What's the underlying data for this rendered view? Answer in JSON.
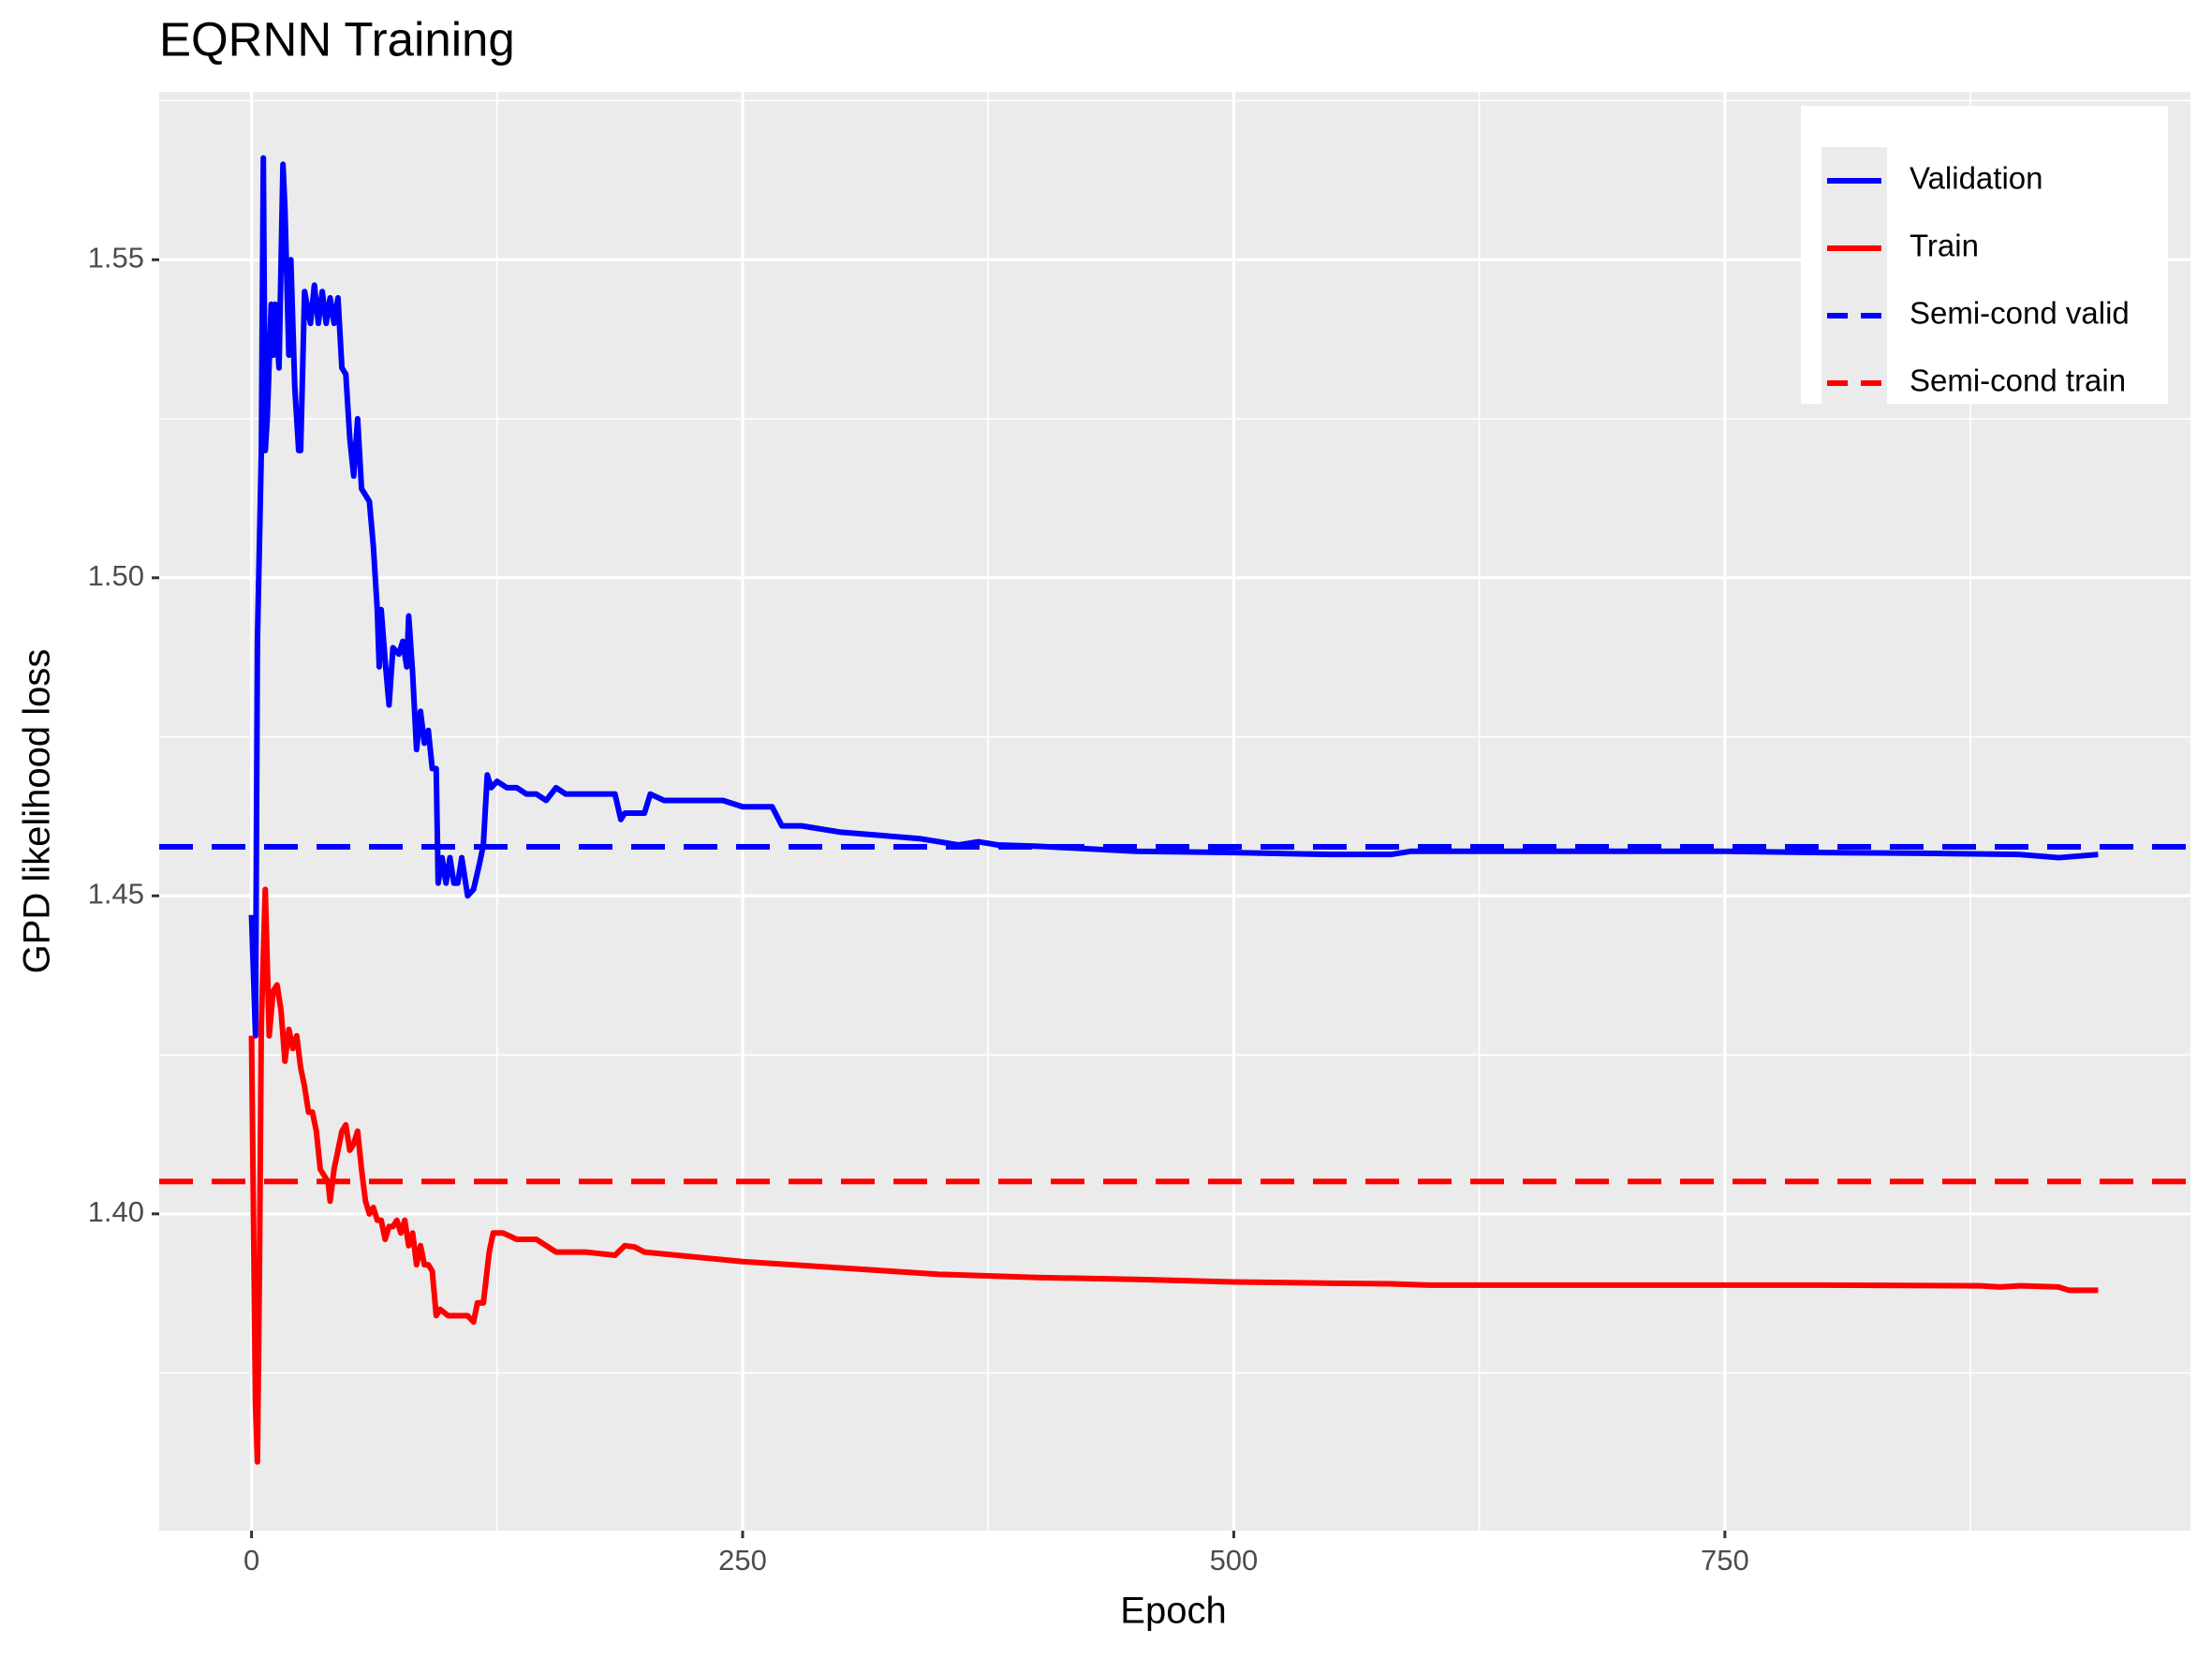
{
  "chart_data": {
    "type": "line",
    "title": "EQRNN Training",
    "x_label": "Epoch",
    "y_label": "GPD likelihood loss",
    "xlim": [
      -47,
      987
    ],
    "ylim": [
      1.3502,
      1.5764
    ],
    "xticks": [
      0,
      250,
      500,
      750
    ],
    "yticks": [
      {
        "value": 1.4,
        "label": "1.40"
      },
      1.45,
      {
        "value": 1.5,
        "label": "1.50"
      },
      1.55
    ],
    "minor_xticks": [
      125,
      375,
      625,
      875
    ],
    "minor_yticks": [
      1.375,
      1.425,
      1.475,
      1.525,
      1.575
    ],
    "grid": true,
    "legend_position": "top-right",
    "series": [
      {
        "name": "Validation",
        "color": "#0000ff",
        "linetype": "solid",
        "x": [
          0,
          2,
          3,
          5,
          6,
          7,
          8,
          10,
          11,
          12,
          14,
          16,
          17,
          19,
          20,
          22,
          24,
          25,
          27,
          30,
          32,
          34,
          36,
          38,
          40,
          42,
          44,
          46,
          48,
          50,
          52,
          54,
          56,
          58,
          60,
          62,
          64,
          65,
          66,
          68,
          70,
          72,
          75,
          77,
          79,
          80,
          82,
          84,
          86,
          88,
          90,
          92,
          94,
          95,
          97,
          99,
          101,
          103,
          105,
          107,
          110,
          113,
          116,
          118,
          120,
          122,
          125,
          130,
          135,
          140,
          145,
          150,
          155,
          160,
          170,
          180,
          185,
          188,
          190,
          200,
          203,
          210,
          220,
          230,
          240,
          250,
          260,
          265,
          270,
          280,
          300,
          320,
          340,
          360,
          370,
          380,
          400,
          450,
          500,
          550,
          580,
          590,
          650,
          700,
          750,
          800,
          850,
          900,
          920,
          940
        ],
        "values": [
          1.447,
          1.428,
          1.49,
          1.52,
          1.566,
          1.52,
          1.525,
          1.543,
          1.535,
          1.543,
          1.533,
          1.565,
          1.558,
          1.535,
          1.55,
          1.53,
          1.52,
          1.52,
          1.545,
          1.54,
          1.546,
          1.54,
          1.545,
          1.54,
          1.544,
          1.54,
          1.544,
          1.533,
          1.532,
          1.522,
          1.516,
          1.525,
          1.514,
          1.513,
          1.512,
          1.505,
          1.495,
          1.486,
          1.495,
          1.487,
          1.48,
          1.489,
          1.488,
          1.49,
          1.486,
          1.494,
          1.485,
          1.473,
          1.479,
          1.474,
          1.476,
          1.47,
          1.47,
          1.452,
          1.456,
          1.452,
          1.456,
          1.452,
          1.452,
          1.456,
          1.45,
          1.451,
          1.455,
          1.458,
          1.469,
          1.467,
          1.468,
          1.467,
          1.467,
          1.466,
          1.466,
          1.465,
          1.467,
          1.466,
          1.466,
          1.466,
          1.466,
          1.462,
          1.463,
          1.463,
          1.466,
          1.465,
          1.465,
          1.465,
          1.465,
          1.464,
          1.464,
          1.464,
          1.461,
          1.461,
          1.46,
          1.4595,
          1.459,
          1.458,
          1.4585,
          1.458,
          1.4578,
          1.457,
          1.4568,
          1.4565,
          1.4565,
          1.457,
          1.457,
          1.457,
          1.457,
          1.4568,
          1.4567,
          1.4565,
          1.456,
          1.4565
        ]
      },
      {
        "name": "Train",
        "color": "#ff0000",
        "linetype": "solid",
        "x": [
          0,
          2,
          3,
          4,
          5,
          7,
          9,
          11,
          13,
          15,
          17,
          19,
          21,
          23,
          25,
          27,
          29,
          31,
          33,
          35,
          37,
          39,
          40,
          42,
          44,
          46,
          48,
          50,
          52,
          54,
          56,
          58,
          60,
          62,
          64,
          66,
          68,
          70,
          72,
          74,
          76,
          78,
          80,
          82,
          84,
          86,
          88,
          90,
          92,
          94,
          96,
          100,
          105,
          110,
          113,
          115,
          118,
          121,
          123,
          128,
          135,
          140,
          145,
          150,
          155,
          170,
          185,
          190,
          195,
          200,
          250,
          300,
          350,
          400,
          450,
          500,
          550,
          580,
          600,
          700,
          800,
          880,
          890,
          900,
          920,
          925,
          940
        ],
        "values": [
          1.428,
          1.37,
          1.361,
          1.39,
          1.43,
          1.451,
          1.428,
          1.435,
          1.436,
          1.432,
          1.424,
          1.429,
          1.426,
          1.428,
          1.423,
          1.42,
          1.416,
          1.416,
          1.413,
          1.407,
          1.406,
          1.405,
          1.402,
          1.407,
          1.41,
          1.413,
          1.414,
          1.41,
          1.411,
          1.413,
          1.407,
          1.402,
          1.4,
          1.401,
          1.399,
          1.399,
          1.396,
          1.398,
          1.398,
          1.399,
          1.397,
          1.399,
          1.395,
          1.397,
          1.392,
          1.395,
          1.392,
          1.392,
          1.391,
          1.384,
          1.385,
          1.384,
          1.384,
          1.384,
          1.383,
          1.386,
          1.386,
          1.394,
          1.397,
          1.397,
          1.396,
          1.396,
          1.396,
          1.395,
          1.394,
          1.394,
          1.3935,
          1.395,
          1.3948,
          1.394,
          1.3925,
          1.3915,
          1.3905,
          1.39,
          1.3897,
          1.3893,
          1.3891,
          1.389,
          1.3888,
          1.3888,
          1.3888,
          1.3887,
          1.3885,
          1.3887,
          1.3885,
          1.388,
          1.388
        ]
      },
      {
        "name": "Semi-cond valid",
        "color": "#0000ff",
        "linetype": "dashed",
        "yintercept": 1.4577
      },
      {
        "name": "Semi-cond train",
        "color": "#ff0000",
        "linetype": "dashed",
        "yintercept": 1.4051
      }
    ]
  }
}
